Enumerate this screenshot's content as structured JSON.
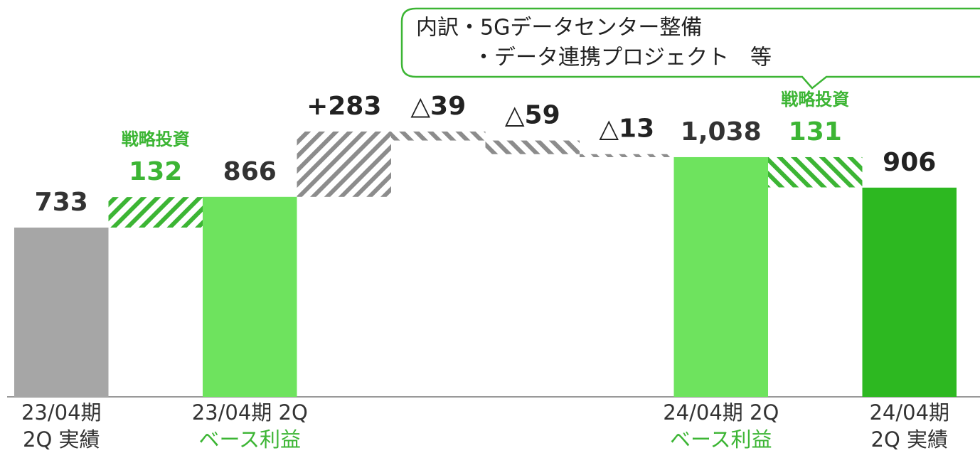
{
  "chart_data": {
    "type": "waterfall",
    "categories": [
      [
        "23/04期",
        "2Q 実績"
      ],
      null,
      [
        "23/04期 2Q",
        "ベース利益"
      ],
      null,
      null,
      null,
      null,
      [
        "24/04期 2Q",
        "ベース利益"
      ],
      null,
      [
        "24/04期",
        "2Q 実績"
      ]
    ],
    "category_colors": [
      [
        "#333333",
        "#333333"
      ],
      null,
      [
        "#333333",
        "#3cb534"
      ],
      null,
      null,
      null,
      null,
      [
        "#333333",
        "#3cb534"
      ],
      null,
      [
        "#333333",
        "#333333"
      ]
    ],
    "values": [
      733,
      132,
      866,
      283,
      -39,
      -59,
      -13,
      1038,
      -131,
      906
    ],
    "value_labels": [
      "733",
      "132",
      "866",
      "+283",
      "△39",
      "△59",
      "△13",
      "1,038",
      "131",
      "906"
    ],
    "bar_kinds": [
      "total",
      "delta",
      "total",
      "delta",
      "delta",
      "delta",
      "delta",
      "total",
      "delta",
      "total"
    ],
    "colors": [
      "#a6a6a6",
      "#3cb534",
      "#6ee35e",
      "#8c8c8c",
      "#8c8c8c",
      "#8c8c8c",
      "#8c8c8c",
      "#6ee35e",
      "#3cb534",
      "#2db821"
    ],
    "hatch": [
      null,
      "/",
      null,
      "/",
      "\\",
      "\\",
      "\\",
      null,
      "\\",
      null
    ],
    "label_colors": [
      "#333333",
      "#3cb534",
      "#333333",
      "#222222",
      "#222222",
      "#222222",
      "#222222",
      "#333333",
      "#3cb534",
      "#222222"
    ],
    "strategic_label": "戦略投資",
    "callout": [
      "内訳・5Gデータセンター整備",
      "・データ連携プロジェクト　等"
    ],
    "ylim": [
      0,
      1700
    ]
  }
}
